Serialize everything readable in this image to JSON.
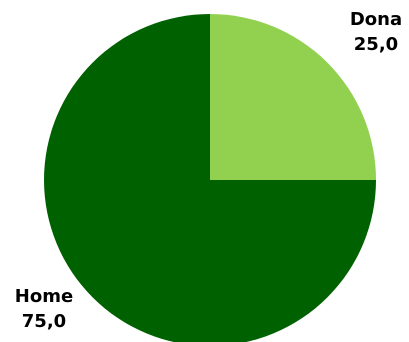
{
  "chart_data": {
    "type": "pie",
    "start_angle": "12 o'clock, clockwise",
    "legend": "none",
    "slices": [
      {
        "label": "Dona",
        "value": 25.0,
        "value_label": "25,0",
        "color": "#92d050"
      },
      {
        "label": "Home",
        "value": 75.0,
        "value_label": "75,0",
        "color": "#006100"
      }
    ]
  }
}
